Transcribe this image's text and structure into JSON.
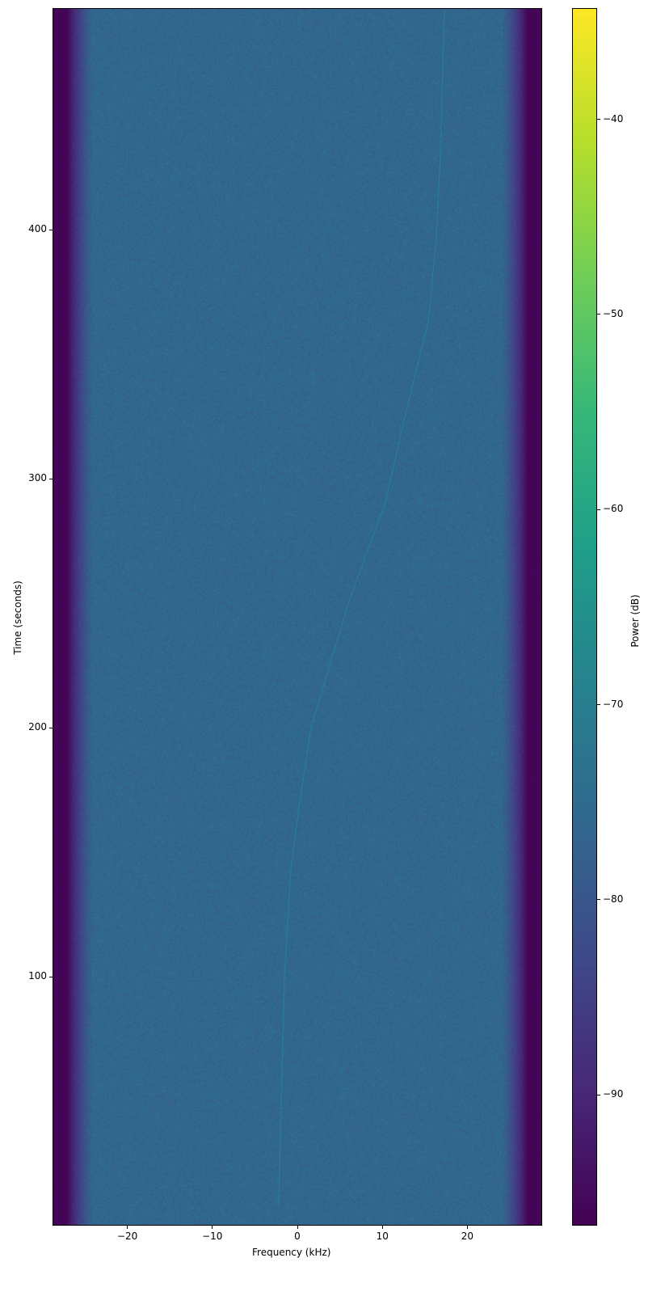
{
  "chart_data": {
    "type": "heatmap",
    "title": "",
    "xlabel": "Frequency (kHz)",
    "ylabel": "Time (seconds)",
    "colorbar_label": "Power (dB)",
    "colormap": "viridis",
    "xlim": [
      -28.8,
      28.8
    ],
    "ylim": [
      0,
      489
    ],
    "clim": [
      -96.7,
      -34.3
    ],
    "xticks": [
      -20,
      -10,
      0,
      10,
      20
    ],
    "xtick_labels": [
      "−20",
      "−10",
      "0",
      "10",
      "20"
    ],
    "yticks": [
      100,
      200,
      300,
      400
    ],
    "ytick_labels": [
      "100",
      "200",
      "300",
      "400"
    ],
    "cbar_ticks": [
      -40,
      -50,
      -60,
      -70,
      -80,
      -90
    ],
    "cbar_tick_labels": [
      "−40",
      "−50",
      "−60",
      "−70",
      "−80",
      "−90"
    ],
    "noise_floor_db": -76,
    "passband_khz": [
      -24,
      24
    ],
    "edge_floor_db": -96,
    "signal_trace": {
      "power_db": -68,
      "points": [
        {
          "t": 8,
          "f": -2.2
        },
        {
          "t": 100,
          "f": -1.5
        },
        {
          "t": 142,
          "f": -0.8
        },
        {
          "t": 168,
          "f": 0.2
        },
        {
          "t": 200,
          "f": 1.6
        },
        {
          "t": 249,
          "f": 5.9
        },
        {
          "t": 291,
          "f": 10.4
        },
        {
          "t": 330,
          "f": 13.0
        },
        {
          "t": 363,
          "f": 15.4
        },
        {
          "t": 395,
          "f": 16.3
        },
        {
          "t": 428,
          "f": 16.8
        },
        {
          "t": 489,
          "f": 17.3
        }
      ]
    }
  }
}
